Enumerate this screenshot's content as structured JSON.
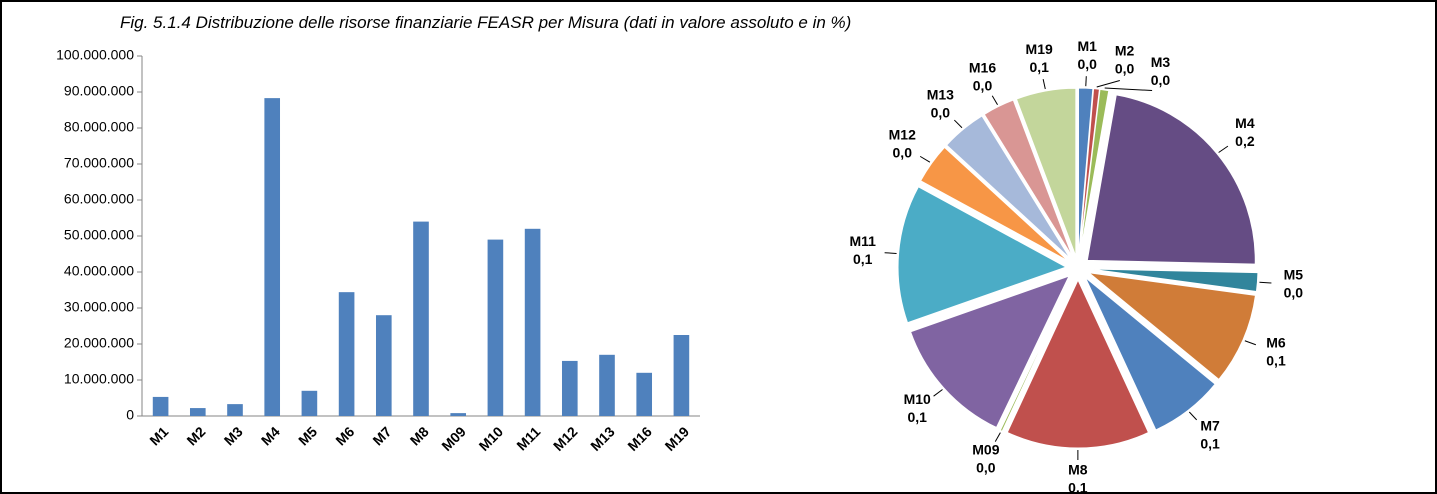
{
  "chart_data": [
    {
      "type": "bar",
      "title": "Fig. 5.1.4 Distribuzione delle risorse finanziarie FEASR per Misura (dati in valore assoluto e in %)",
      "categories": [
        "M1",
        "M2",
        "M3",
        "M4",
        "M5",
        "M6",
        "M7",
        "M8",
        "M09",
        "M10",
        "M11",
        "M12",
        "M13",
        "M16",
        "M19"
      ],
      "values": [
        5300000,
        2200000,
        3300000,
        88300000,
        7000000,
        34400000,
        28000000,
        54000000,
        800000,
        49000000,
        52000000,
        15300000,
        17000000,
        12000000,
        22500000
      ],
      "color": "#4f81bd",
      "ylim": [
        0,
        100000000
      ],
      "yticks": [
        0,
        {
          "value": 10000000,
          "label": "10.000.000"
        },
        {
          "value": 20000000,
          "label": "20.000.000"
        },
        {
          "value": 30000000,
          "label": "30.000.000"
        },
        {
          "value": 40000000,
          "label": "40.000.000"
        },
        {
          "value": 50000000,
          "label": "50.000.000"
        },
        {
          "value": 60000000,
          "label": "60.000.000"
        },
        {
          "value": 70000000,
          "label": "70.000.000"
        },
        {
          "value": 80000000,
          "label": "80.000.000"
        },
        {
          "value": 90000000,
          "label": "90.000.000"
        },
        {
          "value": 100000000,
          "label": "100.000.000"
        }
      ]
    },
    {
      "type": "pie",
      "categories": [
        "M1",
        "M2",
        "M3",
        "M4",
        "M5",
        "M6",
        "M7",
        "M8",
        "M09",
        "M10",
        "M11",
        "M12",
        "M13",
        "M16",
        "M19"
      ],
      "values": [
        0.0136,
        0.0056,
        0.0084,
        0.2258,
        0.0179,
        0.088,
        0.0716,
        0.138,
        0.002,
        0.125,
        0.133,
        0.039,
        0.0435,
        0.0307,
        0.0575
      ],
      "value_labels": [
        "0,0",
        "0,0",
        "0,0",
        "0,2",
        "0,0",
        "0,1",
        "0,1",
        "0,1",
        "0,0",
        "0,1",
        "0,1",
        "0,0",
        "0,0",
        "0,0",
        "0,1"
      ],
      "colors": [
        "#4f81bd",
        "#c0504d",
        "#9bbb59",
        "#654c84",
        "#31859c",
        "#d07c38",
        "#4f81bd",
        "#c0504d",
        "#9bbb59",
        "#8064a2",
        "#4bacc6",
        "#f79646",
        "#a6b9da",
        "#d99694",
        "#c3d69b"
      ]
    }
  ]
}
